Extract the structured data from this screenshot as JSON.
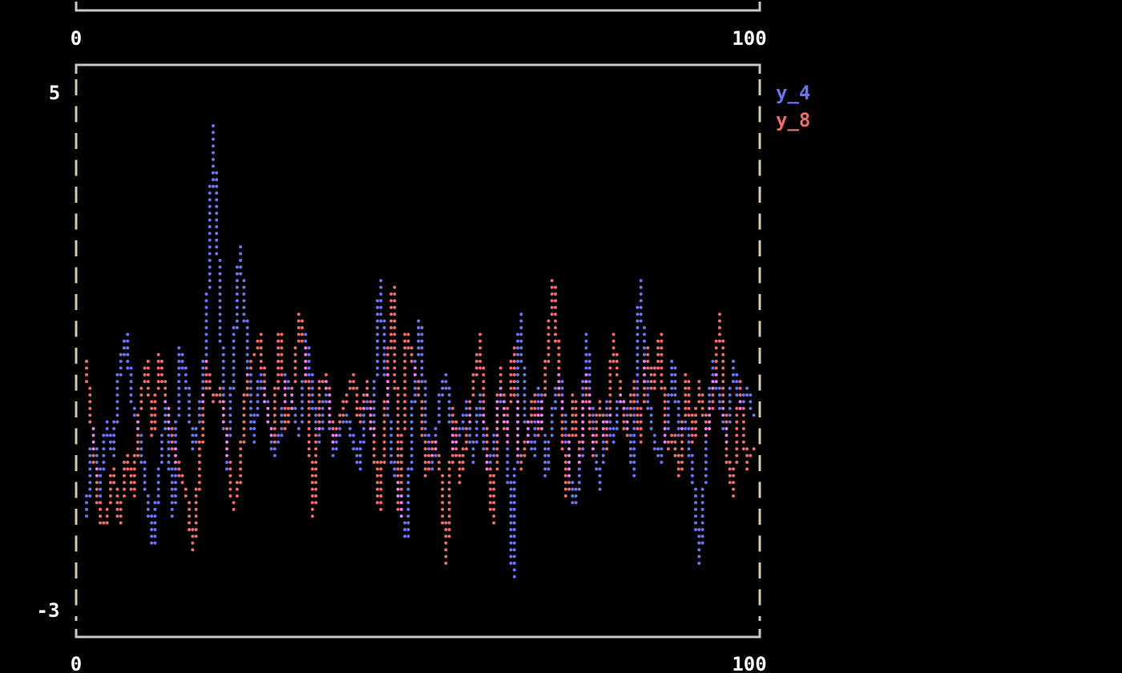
{
  "chart_data": {
    "type": "line",
    "title": "",
    "xlabel": "",
    "ylabel": "",
    "xlim": [
      0,
      100
    ],
    "ylim": [
      -3,
      5
    ],
    "x_ticks": [
      "0",
      "100"
    ],
    "y_ticks": [
      "5",
      "-3"
    ],
    "top_panel_x_ticks": [
      "0",
      "100"
    ],
    "legend_placement": "right",
    "overlap_color": "#f07cf0",
    "series": [
      {
        "name": "y_4",
        "color": "#6a74f0",
        "values": [
          -1.6,
          -0.2,
          -1.2,
          -0.1,
          -0.6,
          0.8,
          1.2,
          0.1,
          -0.3,
          -1.2,
          -1.98,
          -0.8,
          0.2,
          -1.6,
          1.0,
          0.6,
          -0.5,
          0.0,
          1.2,
          4.44,
          1.8,
          -0.8,
          0.7,
          2.56,
          1.3,
          -0.4,
          0.6,
          0.2,
          -0.6,
          -0.3,
          0.6,
          0.1,
          -0.3,
          1.2,
          0.2,
          -0.4,
          0.5,
          -0.6,
          -0.2,
          0.0,
          -0.4,
          -0.8,
          0.3,
          -0.3,
          2.06,
          0.5,
          -0.8,
          -1.3,
          -1.9,
          0.2,
          1.5,
          -0.3,
          -0.8,
          0.3,
          0.6,
          -0.5,
          -0.3,
          0.2,
          -0.7,
          0.3,
          -0.8,
          -0.6,
          0.4,
          -0.2,
          -2.5,
          1.6,
          -0.2,
          -0.6,
          0.4,
          -0.9,
          0.1,
          0.6,
          -0.3,
          -1.4,
          -1.0,
          1.3,
          -0.4,
          -1.1,
          0.2,
          -0.4,
          0.3,
          0.1,
          -0.9,
          2.06,
          0.4,
          -0.3,
          -0.7,
          -0.2,
          0.8,
          -0.3,
          -0.1,
          -1.0,
          -2.26,
          -0.4,
          0.8,
          0.2,
          -0.4,
          0.8,
          0.1,
          0.4,
          0.0
        ]
      },
      {
        "name": "y_8",
        "color": "#f06a6a",
        "values": [
          0.8,
          -0.4,
          -1.6,
          -1.7,
          -0.8,
          -1.7,
          -0.6,
          -1.2,
          0.1,
          0.8,
          -0.3,
          0.9,
          0.2,
          -0.5,
          -0.9,
          -1.2,
          -2.1,
          -0.7,
          0.8,
          0.2,
          0.4,
          -0.3,
          -1.5,
          -0.9,
          0.5,
          0.9,
          1.2,
          0.1,
          -0.4,
          1.3,
          -0.2,
          0.4,
          1.6,
          0.8,
          -1.6,
          0.5,
          0.6,
          -0.4,
          -0.1,
          0.3,
          0.6,
          -0.1,
          0.5,
          -0.3,
          -1.5,
          0.4,
          2.0,
          -1.6,
          1.3,
          0.8,
          0.3,
          -0.9,
          -0.4,
          -0.7,
          -2.3,
          0.1,
          -1.0,
          -0.3,
          0.4,
          1.2,
          -0.5,
          -1.7,
          0.7,
          -0.4,
          1.0,
          -0.8,
          -0.4,
          0.3,
          -0.3,
          0.8,
          2.1,
          0.4,
          -1.3,
          0.3,
          -0.7,
          0.6,
          -0.6,
          0.2,
          -0.5,
          1.2,
          0.4,
          -0.3,
          0.5,
          -0.4,
          1.0,
          0.4,
          1.2,
          -0.5,
          -0.3,
          -0.9,
          0.6,
          -0.4,
          0.5,
          -0.3,
          0.3,
          1.6,
          -0.6,
          -1.2,
          0.5,
          -0.8,
          -0.5
        ]
      }
    ]
  }
}
